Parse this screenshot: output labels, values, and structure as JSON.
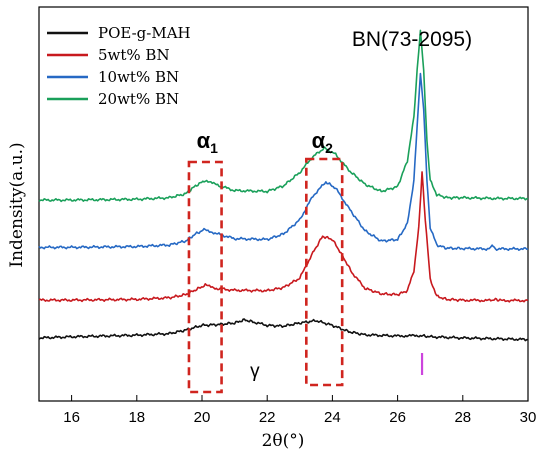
{
  "chart_data": {
    "type": "line",
    "xlabel": "2θ(°)",
    "ylabel": "Indensity(a.u.)",
    "xlim": [
      15,
      30
    ],
    "x_ticks": [
      16,
      18,
      20,
      22,
      24,
      26,
      28,
      30
    ],
    "y_ticks_shown": false,
    "legend_position": "top-left",
    "annotations": {
      "reference_label": "BN(73-2095)",
      "reference_x": 26.75,
      "reference_color": "#cc44dd",
      "alpha1_symbol": "α",
      "alpha1_sub": "1",
      "alpha1_range": [
        19.6,
        20.6
      ],
      "alpha2_symbol": "α",
      "alpha2_sub": "2",
      "alpha2_range": [
        23.2,
        24.3
      ],
      "gamma_label": "γ",
      "gamma_x": 21.5,
      "box_color": "#d0251f"
    },
    "series": [
      {
        "name": "POE-g-MAH",
        "color": "#111111",
        "points": [
          [
            15.0,
            0.0
          ],
          [
            16.0,
            0.15
          ],
          [
            17.0,
            0.25
          ],
          [
            18.0,
            0.35
          ],
          [
            19.0,
            0.55
          ],
          [
            19.5,
            1.0
          ],
          [
            20.0,
            1.6
          ],
          [
            20.5,
            1.7
          ],
          [
            21.0,
            1.9
          ],
          [
            21.3,
            2.3
          ],
          [
            21.6,
            2.0
          ],
          [
            22.0,
            1.6
          ],
          [
            22.5,
            1.5
          ],
          [
            23.0,
            1.9
          ],
          [
            23.5,
            2.2
          ],
          [
            24.0,
            1.6
          ],
          [
            24.5,
            0.8
          ],
          [
            25.0,
            0.4
          ],
          [
            26.0,
            0.25
          ],
          [
            26.7,
            0.3
          ],
          [
            27.0,
            0.15
          ],
          [
            28.0,
            0.0
          ],
          [
            29.0,
            -0.1
          ],
          [
            30.0,
            -0.2
          ]
        ]
      },
      {
        "name": "5wt% BN",
        "color": "#c8191e",
        "points": [
          [
            15.0,
            4.8
          ],
          [
            16.0,
            4.8
          ],
          [
            17.0,
            4.85
          ],
          [
            18.0,
            4.9
          ],
          [
            19.0,
            5.1
          ],
          [
            19.5,
            5.5
          ],
          [
            19.8,
            6.1
          ],
          [
            20.1,
            6.7
          ],
          [
            20.4,
            6.3
          ],
          [
            21.0,
            6.05
          ],
          [
            22.0,
            6.0
          ],
          [
            22.5,
            6.4
          ],
          [
            23.0,
            7.6
          ],
          [
            23.4,
            10.8
          ],
          [
            23.7,
            12.9
          ],
          [
            24.0,
            12.5
          ],
          [
            24.3,
            10.5
          ],
          [
            24.6,
            8.3
          ],
          [
            25.0,
            6.3
          ],
          [
            25.5,
            5.6
          ],
          [
            26.0,
            5.5
          ],
          [
            26.3,
            6.0
          ],
          [
            26.5,
            8.5
          ],
          [
            26.65,
            14.0
          ],
          [
            26.75,
            21.0
          ],
          [
            26.85,
            15.0
          ],
          [
            27.0,
            7.5
          ],
          [
            27.2,
            5.3
          ],
          [
            27.5,
            4.9
          ],
          [
            28.0,
            4.8
          ],
          [
            28.9,
            4.75
          ],
          [
            29.0,
            4.95
          ],
          [
            29.1,
            4.75
          ],
          [
            30.0,
            4.75
          ]
        ]
      },
      {
        "name": "10wt% BN",
        "color": "#2669c4",
        "points": [
          [
            15.0,
            11.5
          ],
          [
            16.0,
            11.5
          ],
          [
            17.0,
            11.55
          ],
          [
            18.0,
            11.6
          ],
          [
            19.0,
            11.8
          ],
          [
            19.5,
            12.3
          ],
          [
            19.8,
            13.2
          ],
          [
            20.1,
            13.8
          ],
          [
            20.4,
            13.3
          ],
          [
            21.0,
            12.6
          ],
          [
            22.0,
            12.5
          ],
          [
            22.5,
            13.2
          ],
          [
            23.0,
            15.0
          ],
          [
            23.4,
            18.0
          ],
          [
            23.8,
            19.8
          ],
          [
            24.1,
            19.0
          ],
          [
            24.5,
            16.5
          ],
          [
            25.0,
            13.6
          ],
          [
            25.5,
            12.3
          ],
          [
            26.0,
            12.5
          ],
          [
            26.3,
            14.5
          ],
          [
            26.5,
            20.0
          ],
          [
            26.6,
            27.0
          ],
          [
            26.7,
            33.6
          ],
          [
            26.8,
            29.0
          ],
          [
            26.9,
            20.0
          ],
          [
            27.0,
            14.0
          ],
          [
            27.2,
            11.8
          ],
          [
            27.5,
            11.4
          ],
          [
            28.0,
            11.35
          ],
          [
            28.8,
            11.3
          ],
          [
            28.9,
            11.8
          ],
          [
            29.0,
            11.3
          ],
          [
            30.0,
            11.3
          ]
        ]
      },
      {
        "name": "20wt% BN",
        "color": "#1aa05a",
        "points": [
          [
            15.0,
            17.5
          ],
          [
            16.0,
            17.5
          ],
          [
            17.0,
            17.55
          ],
          [
            18.0,
            17.6
          ],
          [
            19.0,
            17.8
          ],
          [
            19.5,
            18.3
          ],
          [
            19.8,
            19.3
          ],
          [
            20.1,
            20.0
          ],
          [
            20.4,
            19.5
          ],
          [
            21.0,
            18.7
          ],
          [
            22.0,
            18.6
          ],
          [
            22.5,
            19.3
          ],
          [
            23.0,
            21.0
          ],
          [
            23.4,
            23.0
          ],
          [
            23.75,
            24.1
          ],
          [
            24.1,
            23.3
          ],
          [
            24.5,
            21.3
          ],
          [
            25.0,
            19.5
          ],
          [
            25.5,
            18.6
          ],
          [
            26.0,
            19.2
          ],
          [
            26.3,
            22.5
          ],
          [
            26.5,
            28.0
          ],
          [
            26.6,
            34.0
          ],
          [
            26.7,
            39.0
          ],
          [
            26.8,
            34.0
          ],
          [
            26.9,
            25.0
          ],
          [
            27.0,
            20.0
          ],
          [
            27.2,
            18.2
          ],
          [
            27.5,
            17.8
          ],
          [
            28.0,
            17.8
          ],
          [
            29.0,
            17.7
          ],
          [
            30.0,
            17.7
          ]
        ]
      }
    ]
  }
}
